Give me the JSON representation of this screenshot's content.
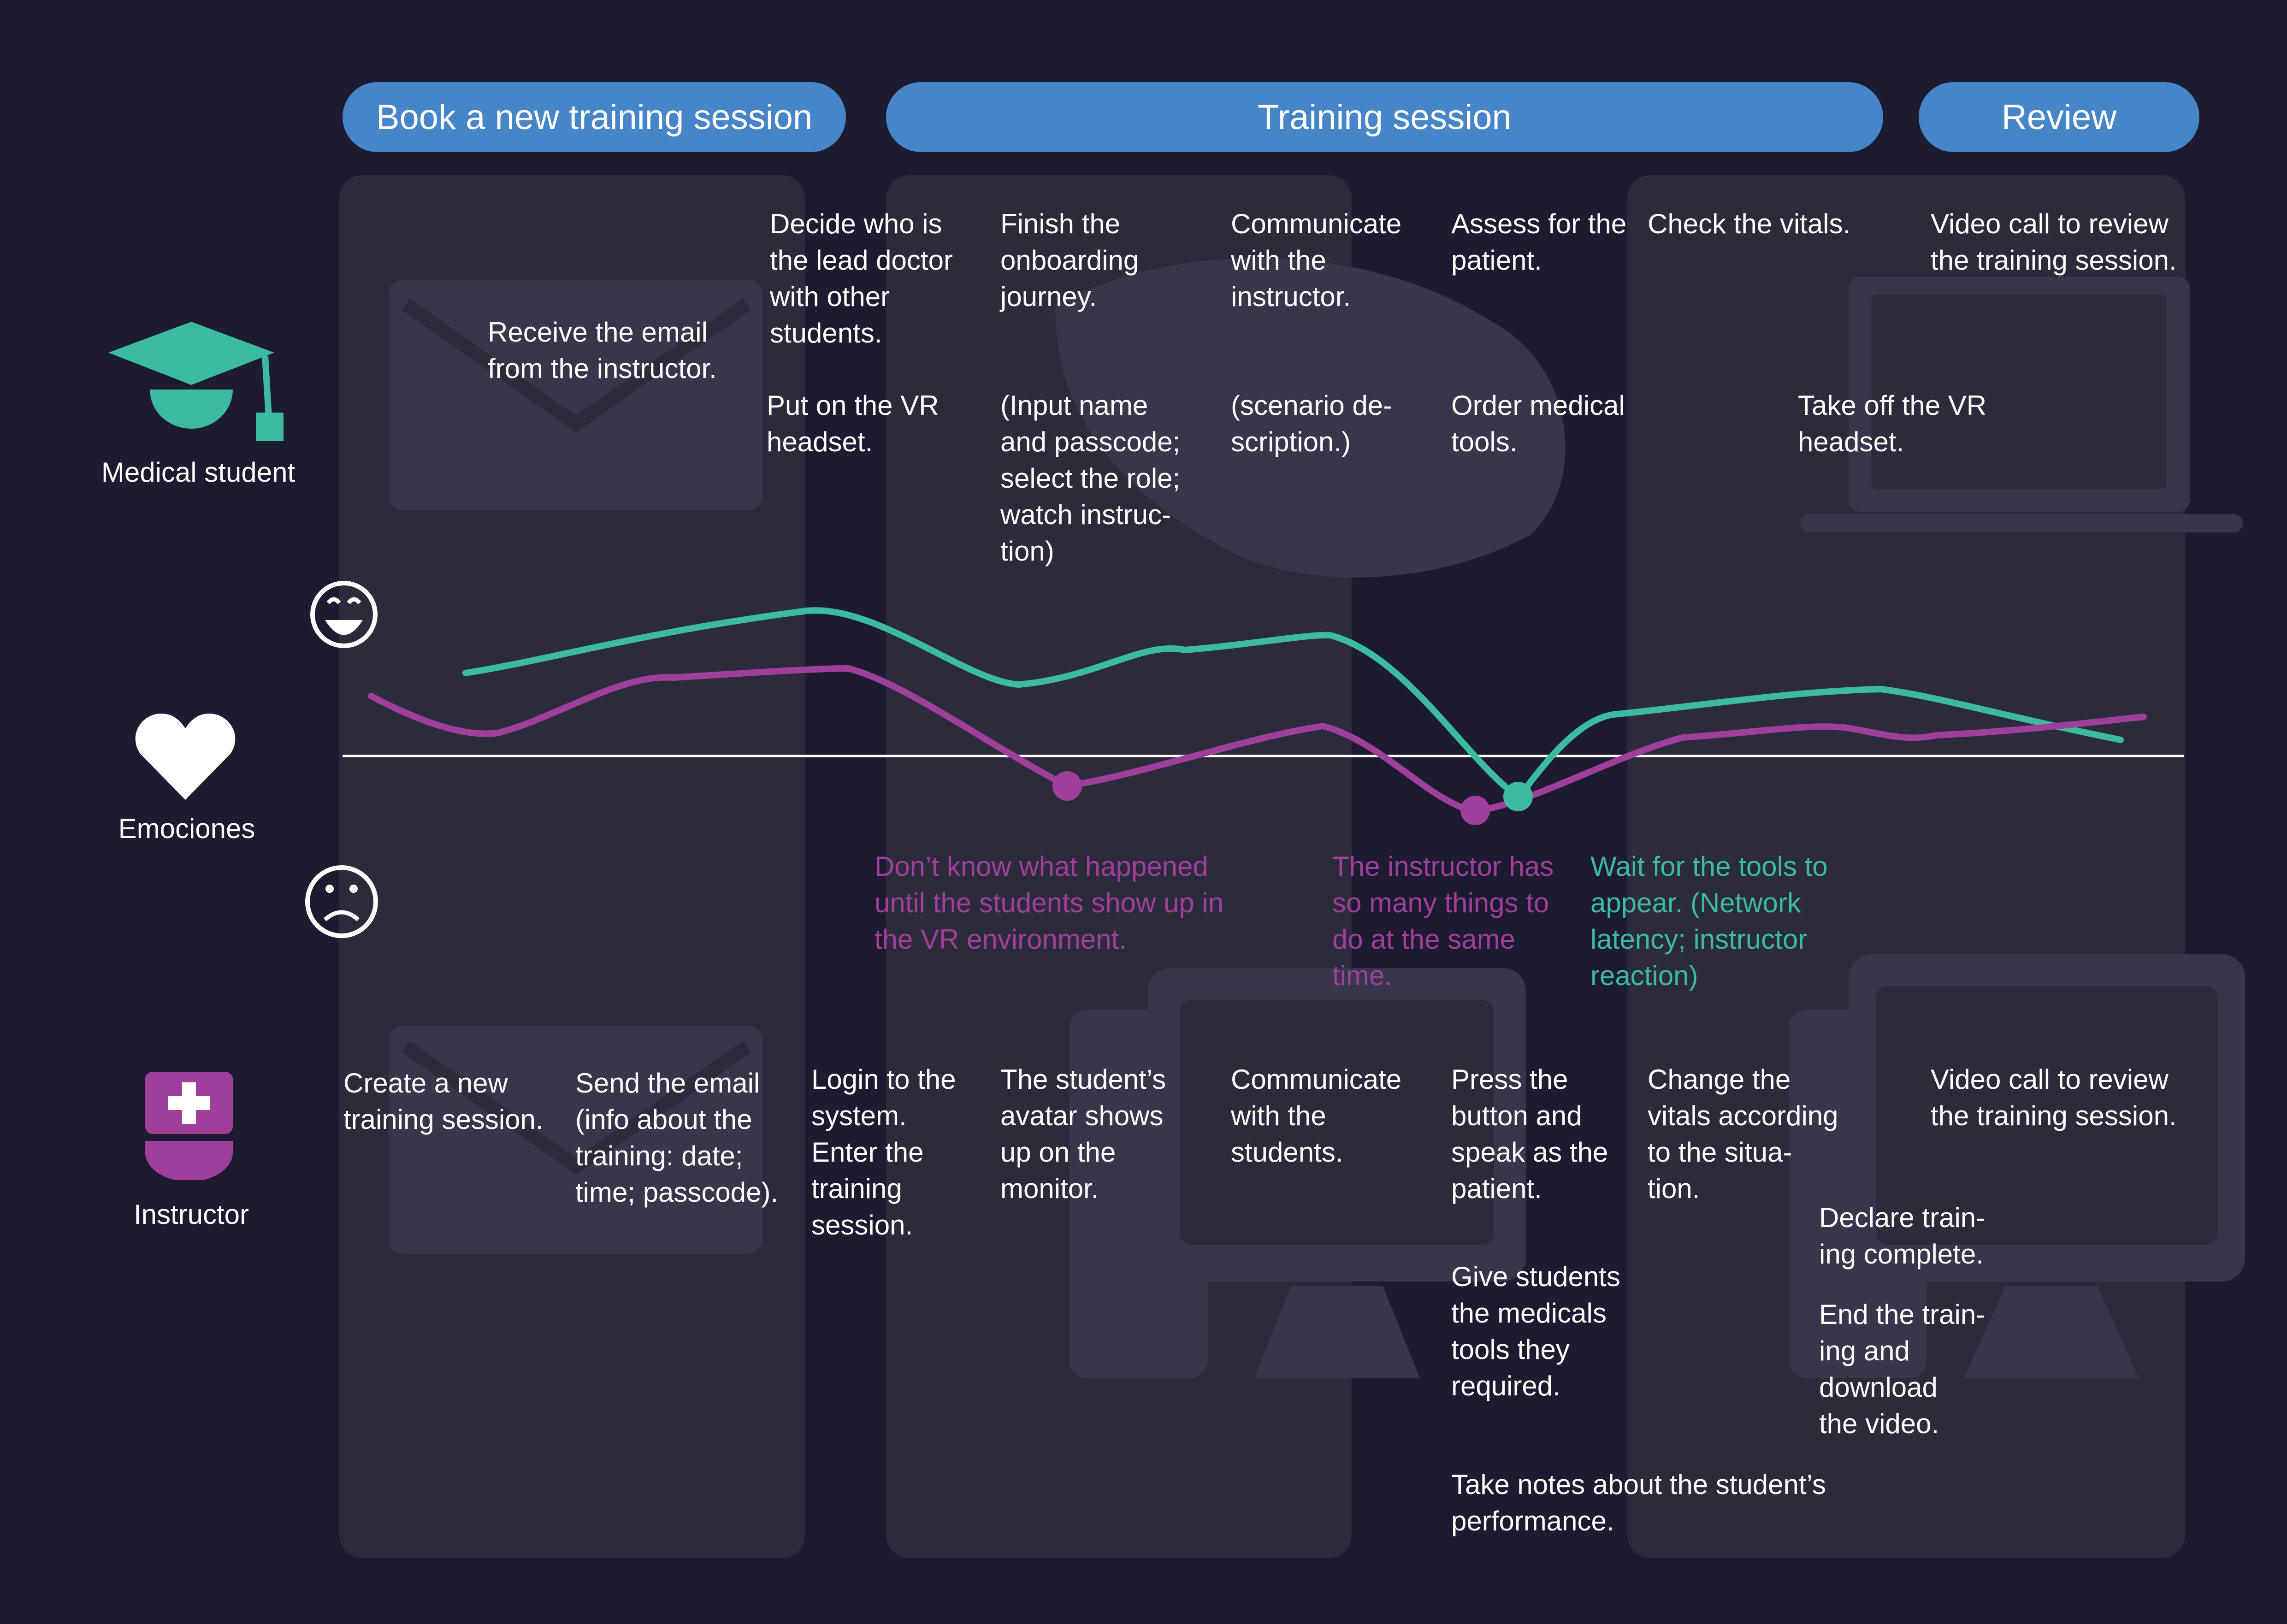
{
  "phases": {
    "book": "Book a new training session",
    "training": "Training session",
    "review": "Review"
  },
  "roles": {
    "student": "Medical student",
    "emotions": "Emociones",
    "instructor": "Instructor"
  },
  "student_steps": {
    "s1": "Receive the email\nfrom the instructor.",
    "s2": "Decide who is\nthe lead doctor\nwith other\nstudents.",
    "s3": "Put on the VR\nheadset.",
    "s4": "Finish the\nonboarding\njourney.",
    "s5": "(Input name\nand passcode;\nselect the role;\nwatch instruc-\ntion)",
    "s6": "Communicate\nwith the\ninstructor.",
    "s7": "(scenario de-\nscription.)",
    "s8": "Assess for the\npatient.",
    "s9": "Order medical\ntools.",
    "s10": "Check the vitals.",
    "s11": "Take off the VR\nheadset.",
    "s12": "Video call to review\nthe training session."
  },
  "pain_points": {
    "p1": "Don’t know what happened\nuntil the students show up in\nthe VR environment.",
    "p2": "The instructor has\nso many things to\ndo at the same\ntime.",
    "p3": "Wait for the tools to\nappear. (Network\nlatency; instructor\nreaction)"
  },
  "instructor_steps": {
    "i1": "Create a new\ntraining session.",
    "i2": "Send the email\n(info about the\ntraining: date;\ntime; passcode).",
    "i3": "Login to the\nsystem.\nEnter the\ntraining\nsession.",
    "i4": "The student’s\navatar shows\nup on the\nmonitor.",
    "i5": "Communicate\nwith the\nstudents.",
    "i6": "Press the\nbutton and\nspeak as the\npatient.",
    "i7": "Give students\nthe medicals\ntools they\nrequired.",
    "i8": "Take notes about the student’s\nperformance.",
    "i9": "Change the\nvitals according\nto the situa-\ntion.",
    "i10": "Declare train-\ning complete.",
    "i11": "End the train-\ning and\ndownload\nthe video.",
    "i12": "Video call to review\nthe training session."
  },
  "icons": {
    "student": "graduation-cap-icon",
    "emotions": "heart-icon",
    "instructor": "nurse-icon",
    "happy": "happy-face-icon",
    "sad": "sad-face-icon"
  },
  "colors": {
    "background": "#1c1b30",
    "phase": "#4685c8",
    "student_line": "#3cbba0",
    "instructor_line": "#a03f9b",
    "text": "#ffffff"
  }
}
